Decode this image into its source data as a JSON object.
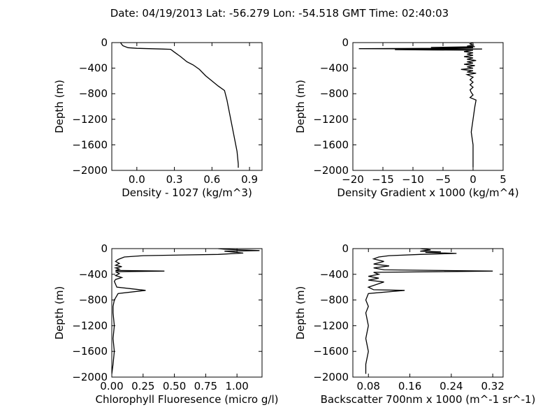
{
  "title": "Date: 04/19/2013  Lat:  -56.279 Lon:  -54.518  GMT Time: 02:40:03",
  "chart_data": [
    {
      "type": "line",
      "xlabel": "Density - 1027 (kg/m^3)",
      "ylabel": "Depth (m)",
      "xlim": [
        -0.2,
        1.0
      ],
      "ylim": [
        -2000,
        0
      ],
      "xticks": [
        0.0,
        0.3,
        0.6,
        0.9
      ],
      "xtick_labels": [
        "0.0",
        "0.3",
        "0.6",
        "0.9"
      ],
      "yticks": [
        0,
        -400,
        -800,
        -1200,
        -1600,
        -2000
      ],
      "ytick_labels": [
        "0",
        "−400",
        "−800",
        "−1200",
        "−1600",
        "−2000"
      ],
      "x": [
        -0.13,
        -0.12,
        -0.11,
        -0.07,
        0.0,
        0.1,
        0.2,
        0.27,
        0.3,
        0.35,
        0.4,
        0.45,
        0.5,
        0.55,
        0.6,
        0.65,
        0.7,
        0.72,
        0.74,
        0.76,
        0.78,
        0.8,
        0.81,
        0.81
      ],
      "y": [
        0,
        -30,
        -50,
        -80,
        -90,
        -95,
        -100,
        -105,
        -150,
        -220,
        -300,
        -350,
        -420,
        -520,
        -600,
        -680,
        -750,
        -900,
        -1100,
        -1300,
        -1500,
        -1700,
        -1900,
        -1960
      ]
    },
    {
      "type": "line",
      "xlabel": "Density Gradient x 1000 (kg/m^4)",
      "ylabel": "Depth (m)",
      "xlim": [
        -20,
        5
      ],
      "ylim": [
        -2000,
        0
      ],
      "xticks": [
        -20,
        -15,
        -10,
        -5,
        0,
        5
      ],
      "xtick_labels": [
        "−20",
        "−15",
        "−10",
        "−5",
        "0",
        "5"
      ],
      "yticks": [
        0,
        -400,
        -800,
        -1200,
        -1600,
        -2000
      ],
      "ytick_labels": [
        "0",
        "−400",
        "−800",
        "−1200",
        "−1600",
        "−2000"
      ],
      "x": [
        0,
        -0.5,
        0,
        -1,
        0.3,
        -7,
        0,
        -5,
        -19,
        1.5,
        -13,
        0,
        -1.5,
        0,
        -1,
        0,
        -1.5,
        0,
        -1,
        0.5,
        -1,
        0,
        -1.5,
        0.3,
        -1,
        0,
        -2,
        0,
        -1,
        0.5,
        -1,
        0,
        -0.5,
        0,
        -0.5,
        0,
        -0.5,
        -0.3,
        0,
        -0.5,
        0.5,
        0.3,
        0,
        -0.3,
        0,
        0,
        0
      ],
      "y": [
        0,
        -20,
        -40,
        -55,
        -65,
        -75,
        -80,
        -90,
        -95,
        -100,
        -110,
        -120,
        -140,
        -160,
        -180,
        -200,
        -220,
        -240,
        -260,
        -280,
        -300,
        -320,
        -340,
        -360,
        -380,
        -400,
        -420,
        -440,
        -460,
        -480,
        -500,
        -540,
        -580,
        -620,
        -660,
        -700,
        -740,
        -780,
        -820,
        -860,
        -900,
        -1000,
        -1200,
        -1400,
        -1600,
        -1800,
        -1950
      ]
    },
    {
      "type": "line",
      "xlabel": "Chlorophyll Fluoresence (micro g/l)",
      "ylabel": "Depth (m)",
      "xlim": [
        0.0,
        1.2
      ],
      "ylim": [
        -2000,
        0
      ],
      "xticks": [
        0.0,
        0.25,
        0.5,
        0.75,
        1.0
      ],
      "xtick_labels": [
        "0.00",
        "0.25",
        "0.50",
        "0.75",
        "1.00"
      ],
      "yticks": [
        0,
        -400,
        -800,
        -1200,
        -1600,
        -2000
      ],
      "ytick_labels": [
        "0",
        "−400",
        "−800",
        "−1200",
        "−1600",
        "−2000"
      ],
      "x": [
        0.85,
        0.9,
        1.18,
        0.9,
        1.05,
        0.85,
        0.25,
        0.1,
        0.05,
        0.03,
        0.06,
        0.03,
        0.08,
        0.03,
        0.06,
        0.03,
        0.42,
        0.03,
        0.06,
        0.03,
        0.08,
        0.03,
        0.02,
        0.04,
        0.27,
        0.05,
        0.02,
        0.01,
        0.01,
        0.02,
        0.01,
        0.02,
        0.01,
        0.0
      ],
      "y": [
        0,
        -10,
        -30,
        -40,
        -70,
        -90,
        -110,
        -130,
        -170,
        -200,
        -230,
        -260,
        -280,
        -300,
        -320,
        -340,
        -350,
        -360,
        -390,
        -420,
        -450,
        -480,
        -510,
        -600,
        -650,
        -700,
        -800,
        -900,
        -1000,
        -1200,
        -1400,
        -1600,
        -1800,
        -1950
      ]
    },
    {
      "type": "line",
      "xlabel": "Backscatter 700nm x 1000 (m^-1 sr^-1)",
      "ylabel": "Depth (m)",
      "xlim": [
        0.05,
        0.34
      ],
      "ylim": [
        -2000,
        0
      ],
      "xticks": [
        0.08,
        0.16,
        0.24,
        0.32
      ],
      "xtick_labels": [
        "0.08",
        "0.16",
        "0.24",
        "0.32"
      ],
      "yticks": [
        0,
        -400,
        -800,
        -1200,
        -1600,
        -2000
      ],
      "ytick_labels": [
        "0",
        "−400",
        "−800",
        "−1200",
        "−1600",
        "−2000"
      ],
      "x": [
        0.18,
        0.2,
        0.18,
        0.22,
        0.19,
        0.25,
        0.18,
        0.12,
        0.1,
        0.09,
        0.11,
        0.09,
        0.12,
        0.09,
        0.11,
        0.32,
        0.09,
        0.1,
        0.08,
        0.1,
        0.08,
        0.11,
        0.08,
        0.09,
        0.15,
        0.08,
        0.075,
        0.08,
        0.075,
        0.08,
        0.075,
        0.08,
        0.075,
        0.075
      ],
      "y": [
        0,
        -20,
        -40,
        -50,
        -60,
        -75,
        -90,
        -110,
        -130,
        -160,
        -200,
        -240,
        -270,
        -300,
        -330,
        -350,
        -370,
        -400,
        -430,
        -460,
        -490,
        -520,
        -600,
        -640,
        -650,
        -700,
        -800,
        -900,
        -1000,
        -1200,
        -1400,
        -1600,
        -1800,
        -1950
      ]
    }
  ]
}
